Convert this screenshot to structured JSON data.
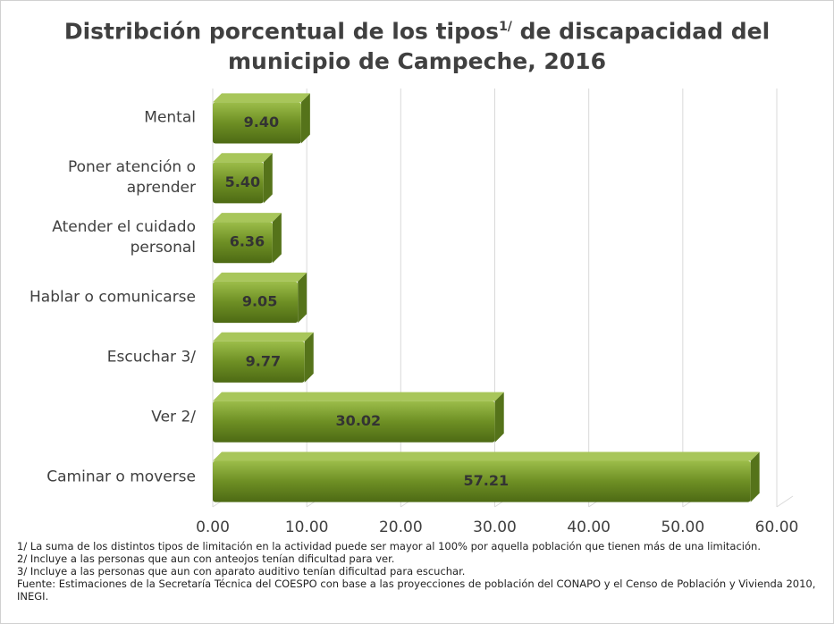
{
  "chart_data": {
    "type": "bar",
    "orientation": "horizontal",
    "title": [
      "Distribción porcentual de los tipos",
      "1/",
      " de discapacidad del",
      "municipio de Campeche, 2016"
    ],
    "categories": [
      "Mental",
      "Poner atención o aprender",
      "Atender el cuidado personal",
      "Hablar o comunicarse",
      "Escuchar 3/",
      "Ver 2/",
      "Caminar o moverse"
    ],
    "values": [
      9.4,
      5.4,
      6.36,
      9.05,
      9.77,
      30.02,
      57.21
    ],
    "value_labels": [
      "9.40",
      "5.40",
      "6.36",
      "9.05",
      "9.77",
      "30.02",
      "57.21"
    ],
    "color": "#6e8f24",
    "xlim": [
      0,
      60
    ],
    "xticks": [
      {
        "value": 0,
        "label": "0.00"
      },
      {
        "value": 10,
        "label": "10.00"
      },
      {
        "value": 20,
        "label": "20.00"
      },
      {
        "value": 30,
        "label": "30.00"
      },
      {
        "value": 40,
        "label": "40.00"
      },
      {
        "value": 50,
        "label": "50.00"
      },
      {
        "value": 60,
        "label": "60.00"
      }
    ],
    "grid": true,
    "notes": [
      "1/ La suma de los distintos tipos de limitación en la actividad puede ser mayor al 100% por aquella población que tienen más de una limitación.",
      "2/  Incluye a las personas que aun con anteojos tenían dificultad para ver.",
      "3/  Incluye a las personas que aun con aparato auditivo tenían dificultad para escuchar.",
      "Fuente: Estimaciones de la Secretaría Técnica del COESPO con base a las proyecciones de población del CONAPO y el Censo de Población y Vivienda 2010, INEGI."
    ]
  }
}
